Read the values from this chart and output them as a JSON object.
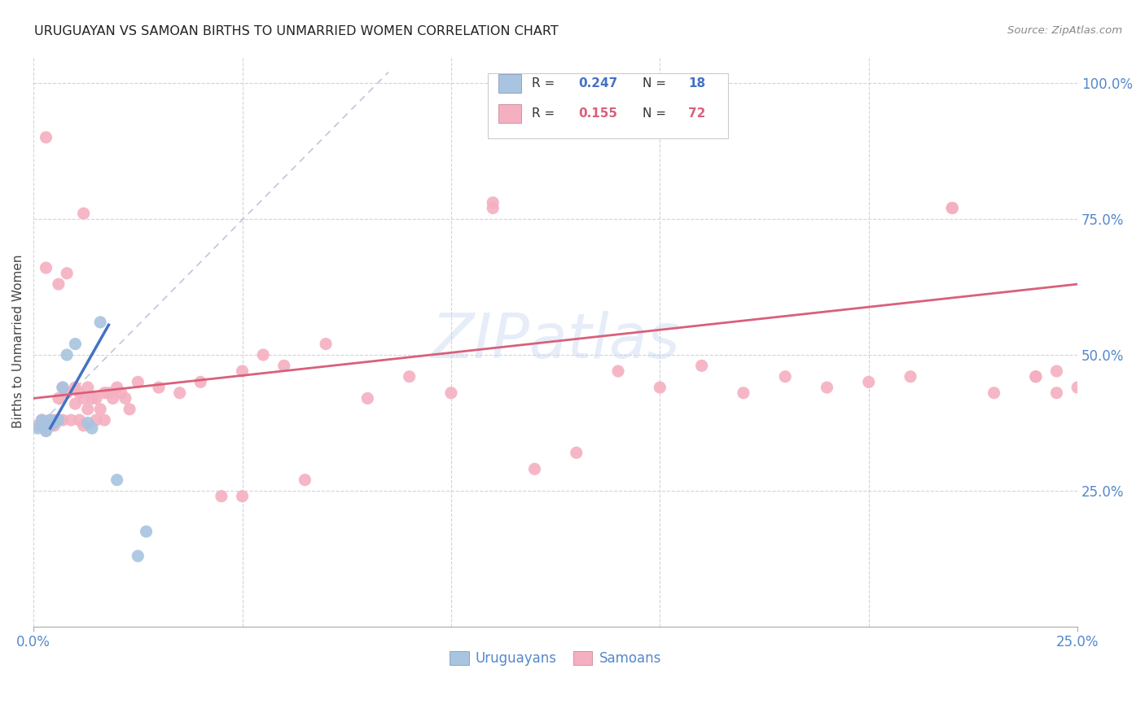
{
  "title": "URUGUAYAN VS SAMOAN BIRTHS TO UNMARRIED WOMEN CORRELATION CHART",
  "source": "Source: ZipAtlas.com",
  "ylabel": "Births to Unmarried Women",
  "right_yticks": [
    0.25,
    0.5,
    0.75,
    1.0
  ],
  "right_yticklabels": [
    "25.0%",
    "50.0%",
    "75.0%",
    "100.0%"
  ],
  "watermark": "ZIPatlas",
  "blue_color": "#a8c4e0",
  "pink_color": "#f4b0c0",
  "blue_line_color": "#4472c4",
  "pink_line_color": "#d9607a",
  "diag_color": "#b0b8d0",
  "xmin": 0.0,
  "xmax": 0.25,
  "ymin": 0.0,
  "ymax": 1.05,
  "uruguayan_x": [
    0.001,
    0.002,
    0.002,
    0.003,
    0.003,
    0.004,
    0.004,
    0.005,
    0.006,
    0.007,
    0.008,
    0.01,
    0.013,
    0.014,
    0.016,
    0.02,
    0.025,
    0.027
  ],
  "uruguayan_y": [
    0.365,
    0.37,
    0.38,
    0.36,
    0.375,
    0.37,
    0.38,
    0.375,
    0.38,
    0.44,
    0.5,
    0.52,
    0.375,
    0.365,
    0.56,
    0.27,
    0.13,
    0.175
  ],
  "samoan_x": [
    0.001,
    0.002,
    0.003,
    0.003,
    0.004,
    0.004,
    0.005,
    0.005,
    0.006,
    0.006,
    0.007,
    0.007,
    0.008,
    0.009,
    0.01,
    0.01,
    0.011,
    0.011,
    0.012,
    0.012,
    0.013,
    0.013,
    0.014,
    0.015,
    0.015,
    0.016,
    0.017,
    0.017,
    0.018,
    0.019,
    0.02,
    0.021,
    0.022,
    0.023,
    0.025,
    0.03,
    0.035,
    0.04,
    0.045,
    0.05,
    0.055,
    0.06,
    0.065,
    0.07,
    0.08,
    0.09,
    0.1,
    0.11,
    0.12,
    0.13,
    0.14,
    0.15,
    0.16,
    0.17,
    0.18,
    0.19,
    0.2,
    0.21,
    0.22,
    0.23,
    0.24,
    0.245,
    0.25,
    0.003,
    0.006,
    0.008,
    0.012,
    0.05,
    0.11,
    0.22,
    0.24,
    0.245
  ],
  "samoan_y": [
    0.37,
    0.38,
    0.36,
    0.9,
    0.38,
    0.37,
    0.38,
    0.37,
    0.38,
    0.42,
    0.44,
    0.38,
    0.43,
    0.38,
    0.44,
    0.41,
    0.38,
    0.43,
    0.42,
    0.37,
    0.44,
    0.4,
    0.42,
    0.38,
    0.42,
    0.4,
    0.43,
    0.38,
    0.43,
    0.42,
    0.44,
    0.43,
    0.42,
    0.4,
    0.45,
    0.44,
    0.43,
    0.45,
    0.24,
    0.47,
    0.5,
    0.48,
    0.27,
    0.52,
    0.42,
    0.46,
    0.43,
    0.78,
    0.29,
    0.32,
    0.47,
    0.44,
    0.48,
    0.43,
    0.46,
    0.44,
    0.45,
    0.46,
    0.77,
    0.43,
    0.46,
    0.47,
    0.44,
    0.66,
    0.63,
    0.65,
    0.76,
    0.24,
    0.77,
    0.77,
    0.46,
    0.43
  ],
  "blue_line_x": [
    0.004,
    0.018
  ],
  "blue_line_y": [
    0.365,
    0.555
  ],
  "pink_line_x": [
    0.0,
    0.25
  ],
  "pink_line_y": [
    0.42,
    0.63
  ],
  "diag_line_x": [
    0.0,
    0.085
  ],
  "diag_line_y": [
    0.36,
    1.02
  ]
}
